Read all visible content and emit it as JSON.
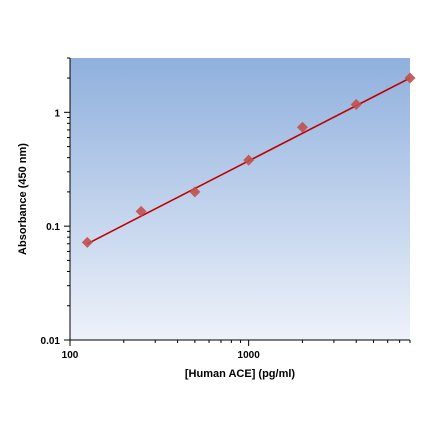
{
  "chart_data": {
    "type": "scatter",
    "title": "",
    "xlabel": "[Human ACE] (pg/ml)",
    "ylabel": "Absorbance (450 nm)",
    "x_scale": "log",
    "y_scale": "log",
    "xlim": [
      100,
      8000
    ],
    "ylim": [
      0.01,
      3
    ],
    "x_ticks": [
      100,
      1000
    ],
    "x_tick_labels": [
      "100",
      "1000"
    ],
    "y_ticks": [
      0.01,
      0.1,
      1
    ],
    "y_tick_labels": [
      "0.01",
      "0.1",
      "1"
    ],
    "grid": false,
    "legend": "none",
    "series": [
      {
        "type": "scatter",
        "marker": "diamond",
        "x": [
          125,
          250,
          500,
          1000,
          2000,
          4000,
          8000
        ],
        "y": [
          0.072,
          0.135,
          0.2,
          0.38,
          0.74,
          1.17,
          2.0
        ]
      },
      {
        "type": "line",
        "x": [
          125,
          8000
        ],
        "y": [
          0.07,
          2.0
        ]
      }
    ],
    "colors": {
      "marker": "#c0504d",
      "fit_line": "#c00000",
      "plot_bg_top": "#8fb0dd",
      "plot_bg_bottom": "#eef2fa"
    }
  }
}
